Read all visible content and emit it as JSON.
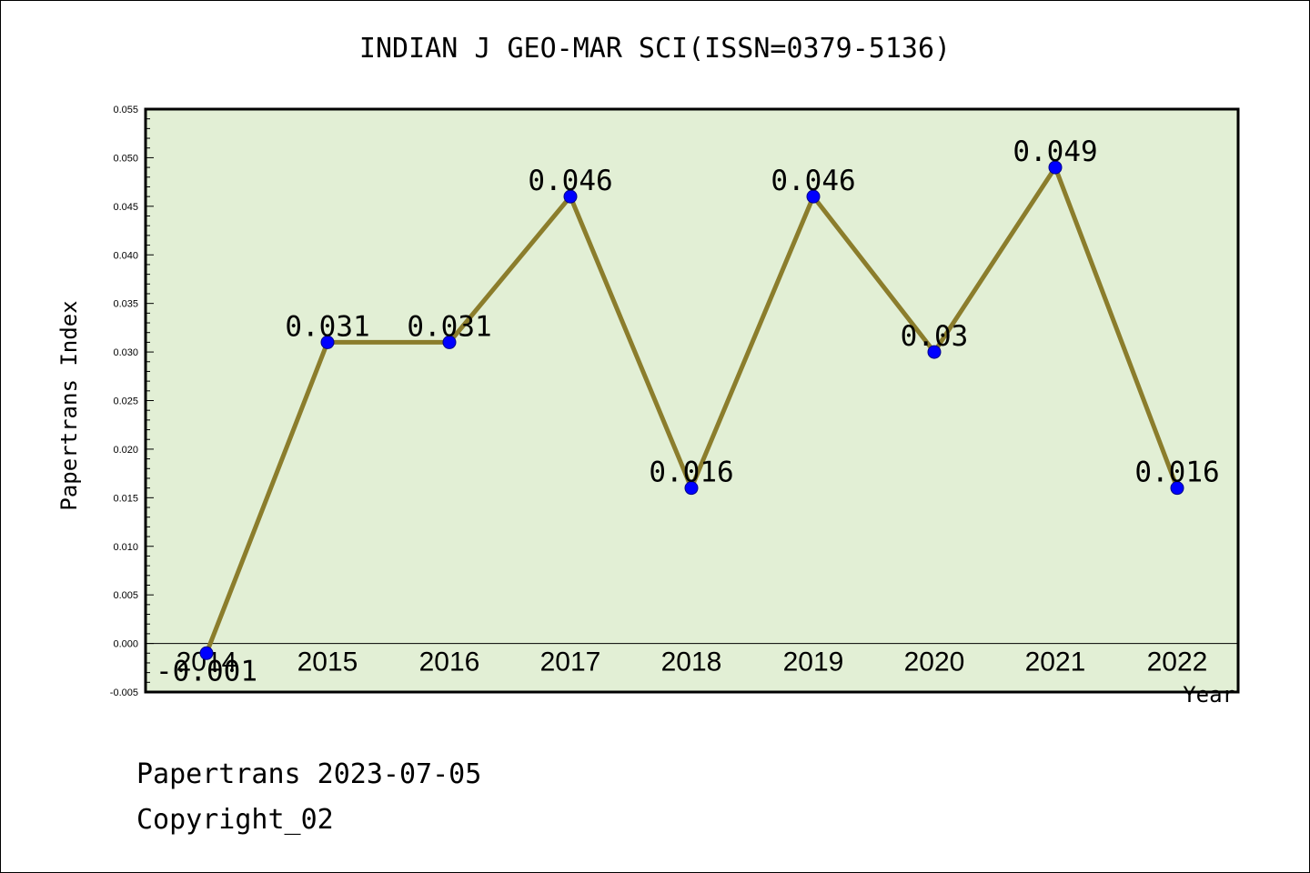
{
  "chart_data": {
    "type": "line",
    "title": "INDIAN J GEO-MAR SCI(ISSN=0379-5136)",
    "xlabel": "Year",
    "ylabel": "Papertrans Index",
    "categories": [
      "2014",
      "2015",
      "2016",
      "2017",
      "2018",
      "2019",
      "2020",
      "2021",
      "2022"
    ],
    "values": [
      -0.001,
      0.031,
      0.031,
      0.046,
      0.016,
      0.046,
      0.03,
      0.049,
      0.016
    ],
    "data_labels": [
      "-0.001",
      "0.031",
      "0.031",
      "0.046",
      "0.016",
      "0.046",
      "0.03",
      "0.049",
      "0.016"
    ],
    "ylim": [
      -0.005,
      0.055
    ],
    "yticks": [
      "-0.005",
      "0.000",
      "0.005",
      "0.010",
      "0.015",
      "0.020",
      "0.025",
      "0.030",
      "0.035",
      "0.040",
      "0.045",
      "0.050",
      "0.055"
    ],
    "grid": false,
    "colors": {
      "plot_background": "#e2efd5",
      "line": "#8b7d2c",
      "marker": "#0000ff",
      "marker_edge": "#00008b"
    }
  },
  "footer": {
    "line1": "Papertrans 2023-07-05",
    "line2": "Copyright_02"
  }
}
